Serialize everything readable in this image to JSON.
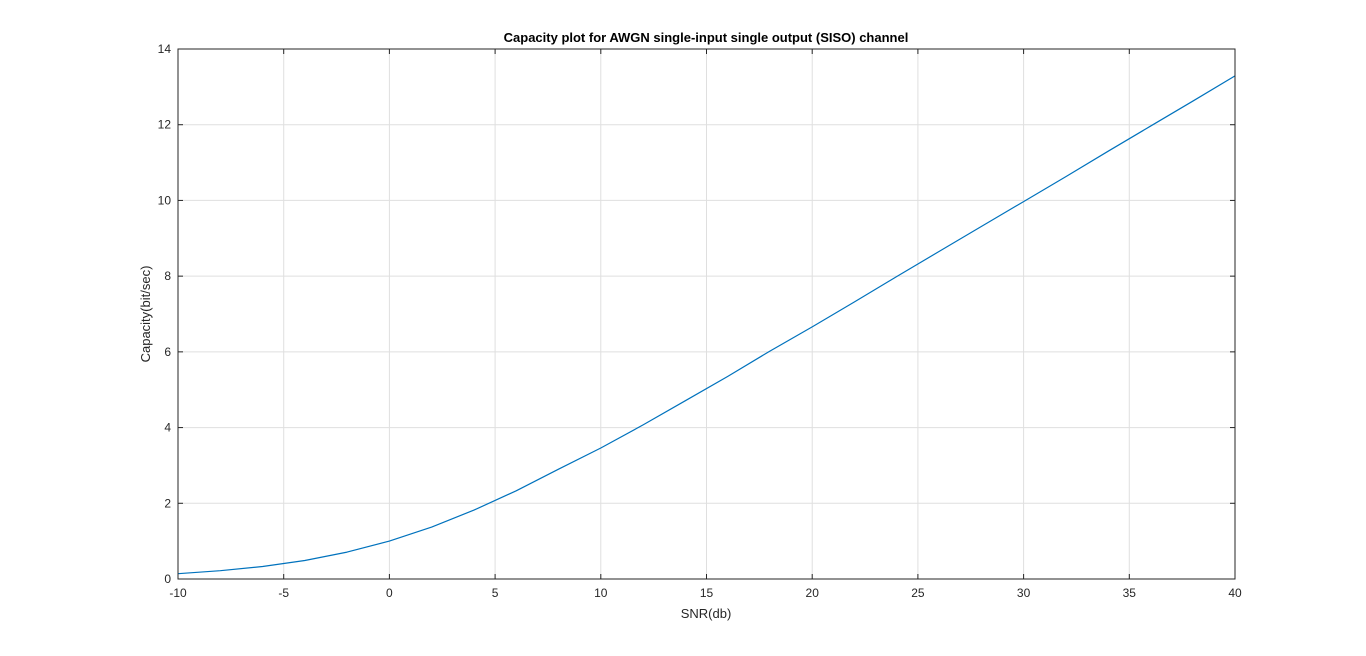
{
  "chart_data": {
    "type": "line",
    "title": "Capacity plot for AWGN single-input single output (SISO) channel",
    "xlabel": "SNR(db)",
    "ylabel": "Capacity(bit/sec)",
    "xlim": [
      -10,
      40
    ],
    "ylim": [
      0,
      14
    ],
    "xticks": [
      -10,
      -5,
      0,
      5,
      10,
      15,
      20,
      25,
      30,
      35,
      40
    ],
    "yticks": [
      0,
      2,
      4,
      6,
      8,
      10,
      12,
      14
    ],
    "xtick_labels": [
      "-10",
      "-5",
      "0",
      "5",
      "10",
      "15",
      "20",
      "25",
      "30",
      "35",
      "40"
    ],
    "ytick_labels": [
      "0",
      "2",
      "4",
      "6",
      "8",
      "10",
      "12",
      "14"
    ],
    "grid": true,
    "series": [
      {
        "color": "#0072bd",
        "x": [
          -10,
          -8,
          -6,
          -4,
          -2,
          0,
          2,
          4,
          6,
          8,
          10,
          12,
          14,
          16,
          18,
          20,
          22,
          24,
          26,
          28,
          30,
          32,
          34,
          36,
          38,
          40
        ],
        "y": [
          0.14,
          0.22,
          0.33,
          0.49,
          0.71,
          1.0,
          1.37,
          1.82,
          2.33,
          2.9,
          3.46,
          4.07,
          4.71,
          5.35,
          6.02,
          6.66,
          7.32,
          7.99,
          8.65,
          9.31,
          9.97,
          10.63,
          11.3,
          11.96,
          12.62,
          13.29
        ]
      }
    ]
  }
}
